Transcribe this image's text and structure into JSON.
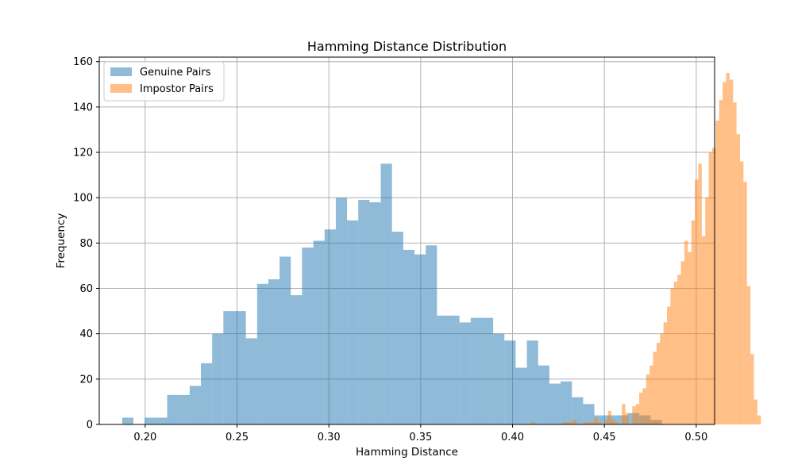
{
  "chart_data": {
    "type": "bar",
    "title": "Hamming Distance Distribution",
    "xlabel": "Hamming Distance",
    "ylabel": "Frequency",
    "xlim": [
      0.175,
      0.51
    ],
    "ylim": [
      0,
      162
    ],
    "xticks": [
      "0.20",
      "0.25",
      "0.30",
      "0.35",
      "0.40",
      "0.45",
      "0.50"
    ],
    "yticks": [
      "0",
      "20",
      "40",
      "60",
      "80",
      "100",
      "120",
      "140",
      "160"
    ],
    "grid": true,
    "legend": "top-left",
    "series": [
      {
        "name": "Genuine Pairs",
        "color": "#1f77b4",
        "opacity": 0.5,
        "bin_start": 0.1875,
        "bin_width": 0.00612,
        "values": [
          3,
          0,
          3,
          3,
          13,
          13,
          17,
          27,
          40,
          50,
          50,
          38,
          62,
          64,
          74,
          57,
          78,
          81,
          86,
          100,
          90,
          99,
          98,
          115,
          85,
          77,
          75,
          79,
          48,
          48,
          45,
          47,
          47,
          40,
          37,
          25,
          37,
          26,
          18,
          19,
          12,
          9,
          4,
          4,
          4,
          5,
          4,
          2
        ]
      },
      {
        "name": "Impostor Pairs",
        "color": "#ff7f0e",
        "opacity": 0.5,
        "bin_start": 0.4103,
        "bin_width": 0.001892,
        "values": [
          1,
          0,
          0,
          0,
          0,
          0,
          0,
          0,
          0,
          1,
          1,
          1,
          2,
          0,
          0,
          1,
          1,
          1,
          3,
          1,
          0,
          2,
          6,
          2,
          1,
          0,
          9,
          5,
          0,
          8,
          9,
          14,
          16,
          22,
          26,
          32,
          36,
          40,
          45,
          52,
          60,
          63,
          66,
          72,
          81,
          76,
          90,
          108,
          115,
          83,
          100,
          120,
          122,
          134,
          143,
          151,
          155,
          152,
          142,
          128,
          116,
          107,
          61,
          31,
          11,
          4
        ]
      }
    ]
  }
}
